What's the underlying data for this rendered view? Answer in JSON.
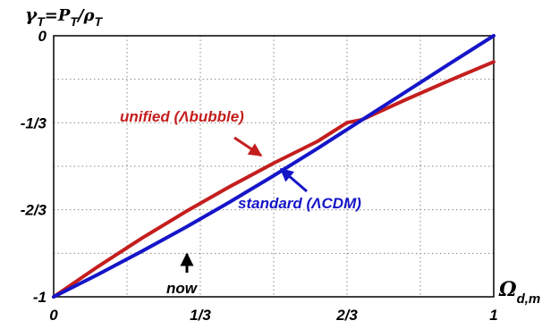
{
  "chart_data": {
    "type": "line",
    "ylabel": {
      "parts": [
        {
          "text": "γ",
          "sub": "T"
        },
        {
          "text": "=P",
          "sub": "T"
        },
        {
          "text": "/ρ",
          "sub": "T"
        }
      ]
    },
    "xlabel": {
      "text": "Ω",
      "sub": "d,m"
    },
    "xlim": [
      0,
      1
    ],
    "ylim": [
      -1,
      0
    ],
    "x_ticks": [
      {
        "value": 0,
        "label": "0"
      },
      {
        "value": 0.3333,
        "label": "1/3"
      },
      {
        "value": 0.6667,
        "label": "2/3"
      },
      {
        "value": 1,
        "label": "1"
      }
    ],
    "y_ticks": [
      {
        "value": 0,
        "label": "0"
      },
      {
        "value": -0.3333,
        "label": "-1/3"
      },
      {
        "value": -0.6667,
        "label": "-2/3"
      },
      {
        "value": -1,
        "label": "-1"
      }
    ],
    "grid": true,
    "series": [
      {
        "name": "unified (Λbubble)",
        "color": "#c41e1e",
        "x": [
          0,
          0.1,
          0.2,
          0.3,
          0.4,
          0.5,
          0.6,
          0.6667,
          0.7,
          0.8,
          0.9,
          1.0
        ],
        "y": [
          -1.0,
          -0.885,
          -0.776,
          -0.674,
          -0.578,
          -0.488,
          -0.404,
          -0.333,
          -0.322,
          -0.245,
          -0.171,
          -0.1
        ]
      },
      {
        "name": "standard (ΛCDM)",
        "color": "#1515c8",
        "x": [
          0,
          0.1,
          0.2,
          0.3,
          0.4,
          0.5,
          0.6,
          0.7,
          0.8,
          0.9,
          1.0
        ],
        "y": [
          -1.0,
          -0.915,
          -0.826,
          -0.734,
          -0.637,
          -0.536,
          -0.431,
          -0.323,
          -0.215,
          -0.107,
          0.0
        ]
      }
    ],
    "annotations": [
      {
        "text": "now",
        "arrow": "up"
      }
    ]
  }
}
